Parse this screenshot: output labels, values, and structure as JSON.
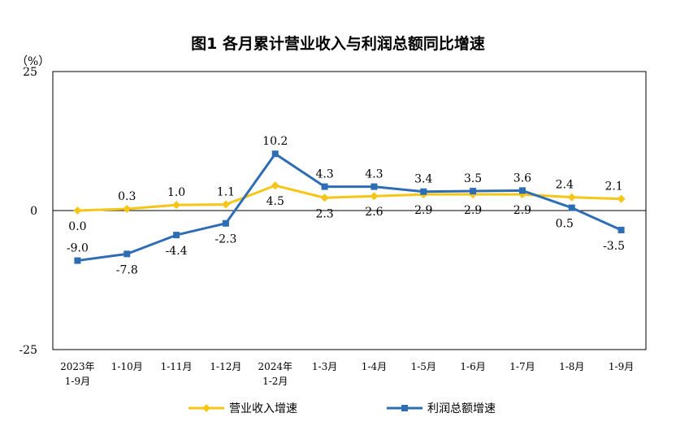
{
  "chart_data": {
    "type": "line",
    "title": "图1  各月累计营业收入与利润总额同比增速",
    "unit": "（%）",
    "ylim": [
      -25,
      25
    ],
    "yticks": [
      "25",
      "0",
      "-25"
    ],
    "categories": [
      [
        "2023年",
        "1-9月"
      ],
      [
        "1-10月"
      ],
      [
        "1-11月"
      ],
      [
        "1-12月"
      ],
      [
        "2024年",
        "1-2月"
      ],
      [
        "1-3月"
      ],
      [
        "1-4月"
      ],
      [
        "1-5月"
      ],
      [
        "1-6月"
      ],
      [
        "1-7月"
      ],
      [
        "1-8月"
      ],
      [
        "1-9月"
      ]
    ],
    "series": [
      {
        "name": "营业收入增速",
        "color": "#f5c518",
        "marker": "diamond",
        "values": [
          0.0,
          0.3,
          1.0,
          1.1,
          4.5,
          2.3,
          2.6,
          2.9,
          2.9,
          2.9,
          2.4,
          2.1
        ],
        "labels": [
          "0.0",
          "0.3",
          "1.0",
          "1.1",
          "4.5",
          "2.3",
          "2.6",
          "2.9",
          "2.9",
          "2.9",
          "2.4",
          "2.1"
        ]
      },
      {
        "name": "利润总额增速",
        "color": "#2e6db4",
        "marker": "square",
        "values": [
          -9.0,
          -7.8,
          -4.4,
          -2.3,
          10.2,
          4.3,
          4.3,
          3.4,
          3.5,
          3.6,
          0.5,
          -3.5
        ],
        "labels": [
          "-9.0",
          "-7.8",
          "-4.4",
          "-2.3",
          "10.2",
          "4.3",
          "4.3",
          "3.4",
          "3.5",
          "3.6",
          "0.5",
          "-3.5"
        ]
      }
    ],
    "legend_position": "bottom",
    "grid": false
  }
}
